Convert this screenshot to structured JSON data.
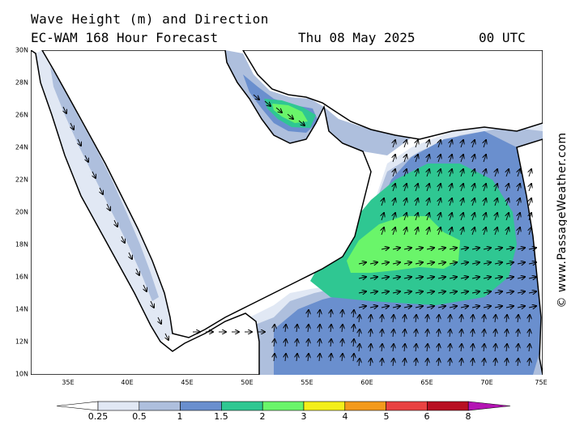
{
  "header": {
    "title": "Wave Height (m) and Direction",
    "model": "EC-WAM 168 Hour Forecast",
    "date": "Thu 08 May 2025",
    "time": "00 UTC"
  },
  "map": {
    "lat_labels": [
      "30N",
      "28N",
      "26N",
      "24N",
      "22N",
      "20N",
      "18N",
      "16N",
      "14N",
      "12N",
      "10N"
    ],
    "lon_labels": [
      "35E",
      "40E",
      "45E",
      "50E",
      "55E",
      "60E",
      "65E",
      "70E",
      "75E"
    ],
    "land_color": "#ffffff",
    "colors": {
      "c025": "#e1e8f4",
      "c05": "#aebfdd",
      "c1": "#6a8fce",
      "c15": "#2fc792",
      "c2": "#6af56a",
      "c3": "#f3ef1a",
      "c4": "#f39a1c",
      "c5": "#e94242",
      "c6": "#b80f22",
      "c8": "#b414b4"
    }
  },
  "legend": {
    "labels": [
      "0.25",
      "0.5",
      "1",
      "1.5",
      "2",
      "3",
      "4",
      "5",
      "6",
      "8"
    ],
    "colors": [
      "#ffffff",
      "#e1e8f4",
      "#aebfdd",
      "#6a8fce",
      "#2fc792",
      "#6af56a",
      "#f3ef1a",
      "#f39a1c",
      "#e94242",
      "#b80f22",
      "#b414b4"
    ]
  },
  "credit": "© www.PassageWeather.com"
}
